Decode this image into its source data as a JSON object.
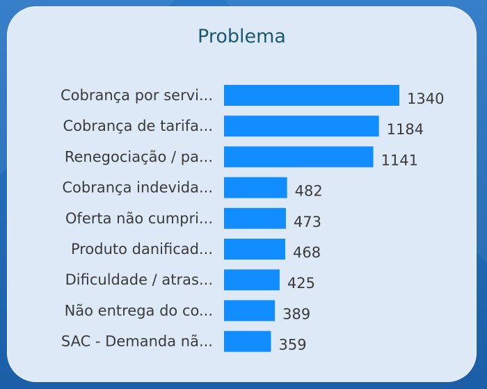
{
  "chart_data": {
    "type": "bar",
    "orientation": "horizontal",
    "title": "Problema",
    "categories": [
      "Cobrança por servi...",
      "Cobrança de tarifa...",
      "Renegociação / pa...",
      "Cobrança indevida...",
      "Oferta não cumpri...",
      "Produto danificad...",
      "Dificuldade / atras...",
      "Não entrega do co...",
      "SAC - Demanda nã..."
    ],
    "values": [
      1340,
      1184,
      1141,
      482,
      473,
      468,
      425,
      389,
      359
    ],
    "value_labels": [
      "1340",
      "1184",
      "1141",
      "482",
      "473",
      "468",
      "425",
      "389",
      "359"
    ],
    "xlim": [
      0,
      1340
    ],
    "grid": false,
    "legend": "none",
    "bar_color": "#118dff"
  }
}
